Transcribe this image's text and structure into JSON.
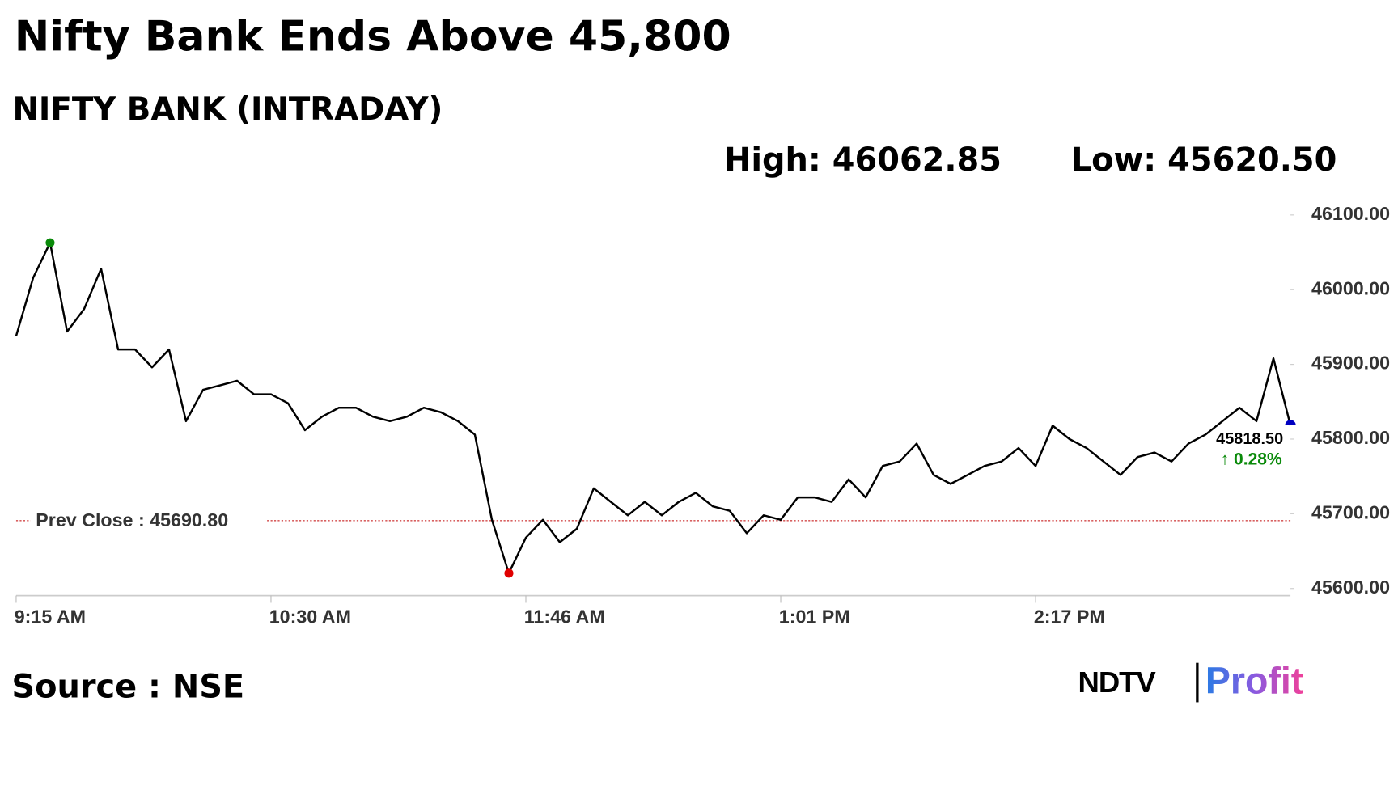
{
  "chart_data": {
    "type": "line",
    "title": "Nifty Bank Ends Above 45,800",
    "subtitle": "NIFTY BANK (INTRADAY)",
    "high_label": "High: 46062.85",
    "low_label": "Low: 45620.50",
    "categories": [
      "9:15 AM",
      null,
      null,
      null,
      null,
      null,
      null,
      null,
      null,
      null,
      null,
      null,
      null,
      null,
      null,
      "10:30 AM",
      null,
      null,
      null,
      null,
      null,
      null,
      null,
      null,
      null,
      null,
      null,
      null,
      null,
      null,
      "11:46 AM",
      null,
      null,
      null,
      null,
      null,
      null,
      null,
      null,
      null,
      null,
      null,
      null,
      null,
      null,
      "1:01 PM",
      null,
      null,
      null,
      null,
      null,
      null,
      null,
      null,
      null,
      null,
      null,
      null,
      null,
      null,
      "2:17 PM",
      null,
      null,
      null,
      null,
      null,
      null,
      null,
      null,
      null,
      null,
      null,
      null,
      null,
      null,
      null
    ],
    "values": [
      45938,
      46016,
      46062.85,
      45944,
      45974,
      46028,
      45920,
      45920,
      45896,
      45920,
      45824,
      45866,
      45872,
      45878,
      45860,
      45860,
      45848,
      45812,
      45830,
      45842,
      45842,
      45830,
      45824,
      45830,
      45842,
      45836,
      45824,
      45806,
      45692,
      45620.5,
      45668,
      45692,
      45662,
      45680,
      45734,
      45716,
      45698,
      45716,
      45698,
      45716,
      45728,
      45710,
      45704,
      45674,
      45698,
      45692,
      45722,
      45722,
      45716,
      45746,
      45722,
      45764,
      45770,
      45794,
      45752,
      45740,
      45752,
      45764,
      45770,
      45788,
      45764,
      45818,
      45800,
      45788,
      45770,
      45752,
      45776,
      45782,
      45770,
      45794,
      45806,
      45824,
      45842,
      45824,
      45908,
      45818.5
    ],
    "color": "#000000",
    "ylim": [
      45600,
      46100
    ],
    "yticks": [
      {
        "value": 45600,
        "label": "45600.00"
      },
      {
        "value": 45700,
        "label": "45700.00"
      },
      {
        "value": 45800,
        "label": "45800.00"
      },
      {
        "value": 45900,
        "label": "45900.00"
      },
      {
        "value": 46000,
        "label": "46000.00"
      },
      {
        "value": 46100,
        "label": "46100.00"
      }
    ],
    "reference_line": {
      "value": 45690.8,
      "label": "Prev Close : 45690.80",
      "color": "#c00000"
    },
    "last_label": "45818.50",
    "change_label": "↑ 0.28%",
    "change_color": "#0a8a0a",
    "high_color": "#0a8a0a",
    "low_color": "#e00000",
    "last_color": "#0000c0"
  },
  "source": "Source : NSE",
  "brand": {
    "name": "NDTV",
    "product": "Profit"
  }
}
